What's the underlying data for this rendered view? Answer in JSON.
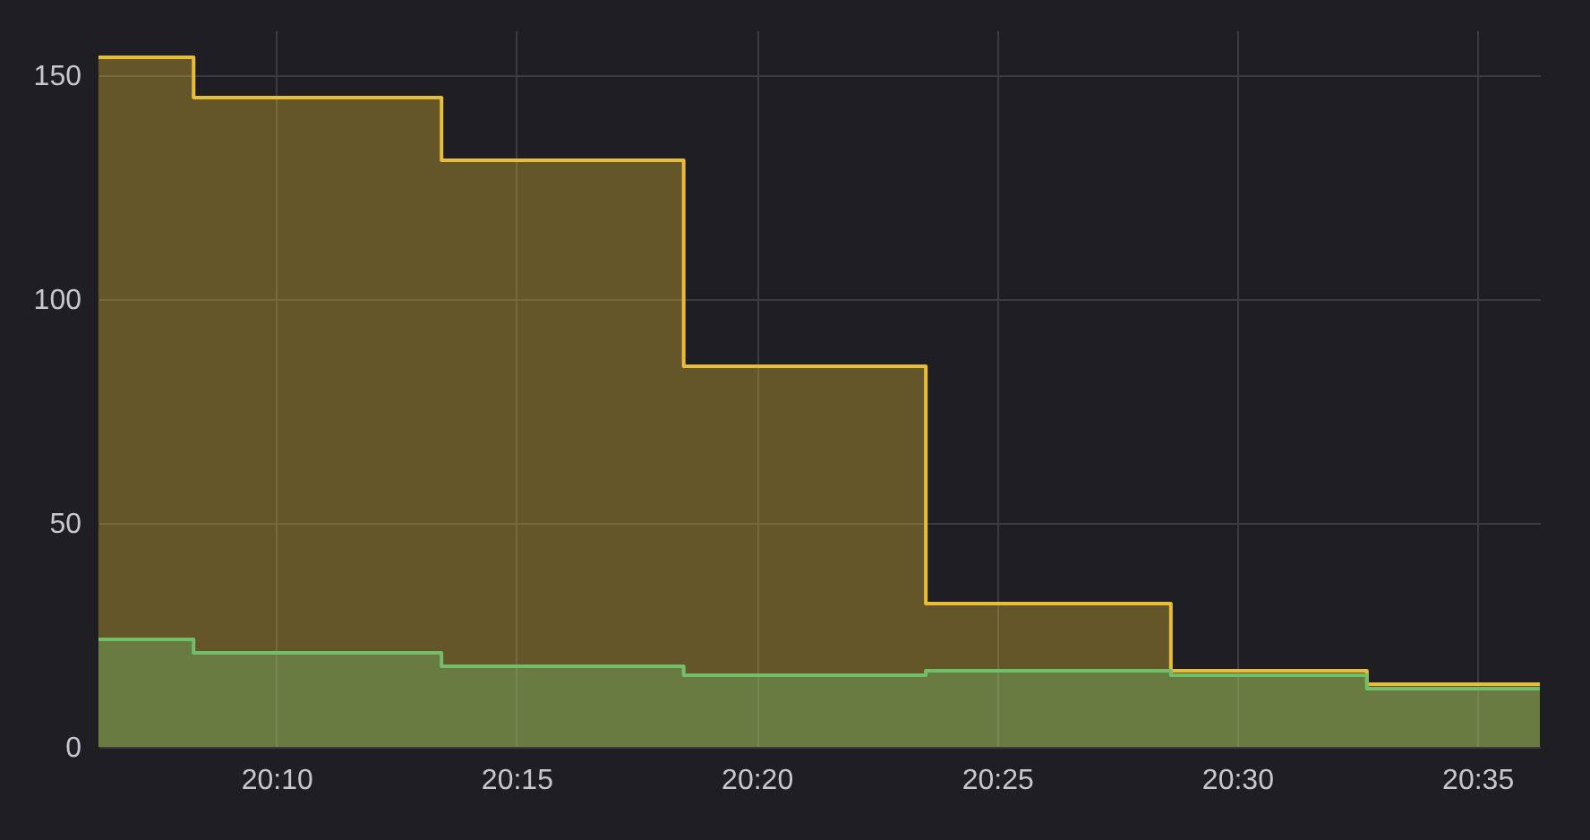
{
  "chart_data": {
    "type": "area",
    "x": [
      20.105,
      20.138,
      20.138,
      20.224,
      20.224,
      20.308,
      20.308,
      20.392,
      20.392,
      20.477,
      20.477,
      20.545,
      20.545,
      20.605
    ],
    "series": [
      {
        "color": "#e8bd3a",
        "values": [
          154,
          154,
          145,
          145,
          131,
          131,
          85,
          85,
          32,
          32,
          17,
          17,
          14,
          14
        ]
      },
      {
        "color": "#73bf69",
        "values": [
          24,
          24,
          21,
          21,
          18,
          18,
          16,
          16,
          17,
          17,
          16,
          16,
          13,
          13
        ]
      }
    ],
    "xlim": [
      20.105,
      20.605
    ],
    "xticks": [
      {
        "value": 20.1667,
        "label": "20:10"
      },
      {
        "value": 20.25,
        "label": "20:15"
      },
      {
        "value": 20.3333,
        "label": "20:20"
      },
      {
        "value": 20.4167,
        "label": "20:25"
      },
      {
        "value": 20.5,
        "label": "20:30"
      },
      {
        "value": 20.5833,
        "label": "20:35"
      }
    ],
    "ylim": [
      0,
      160
    ],
    "yticks": [
      0,
      50,
      100,
      150
    ],
    "grid": true
  }
}
